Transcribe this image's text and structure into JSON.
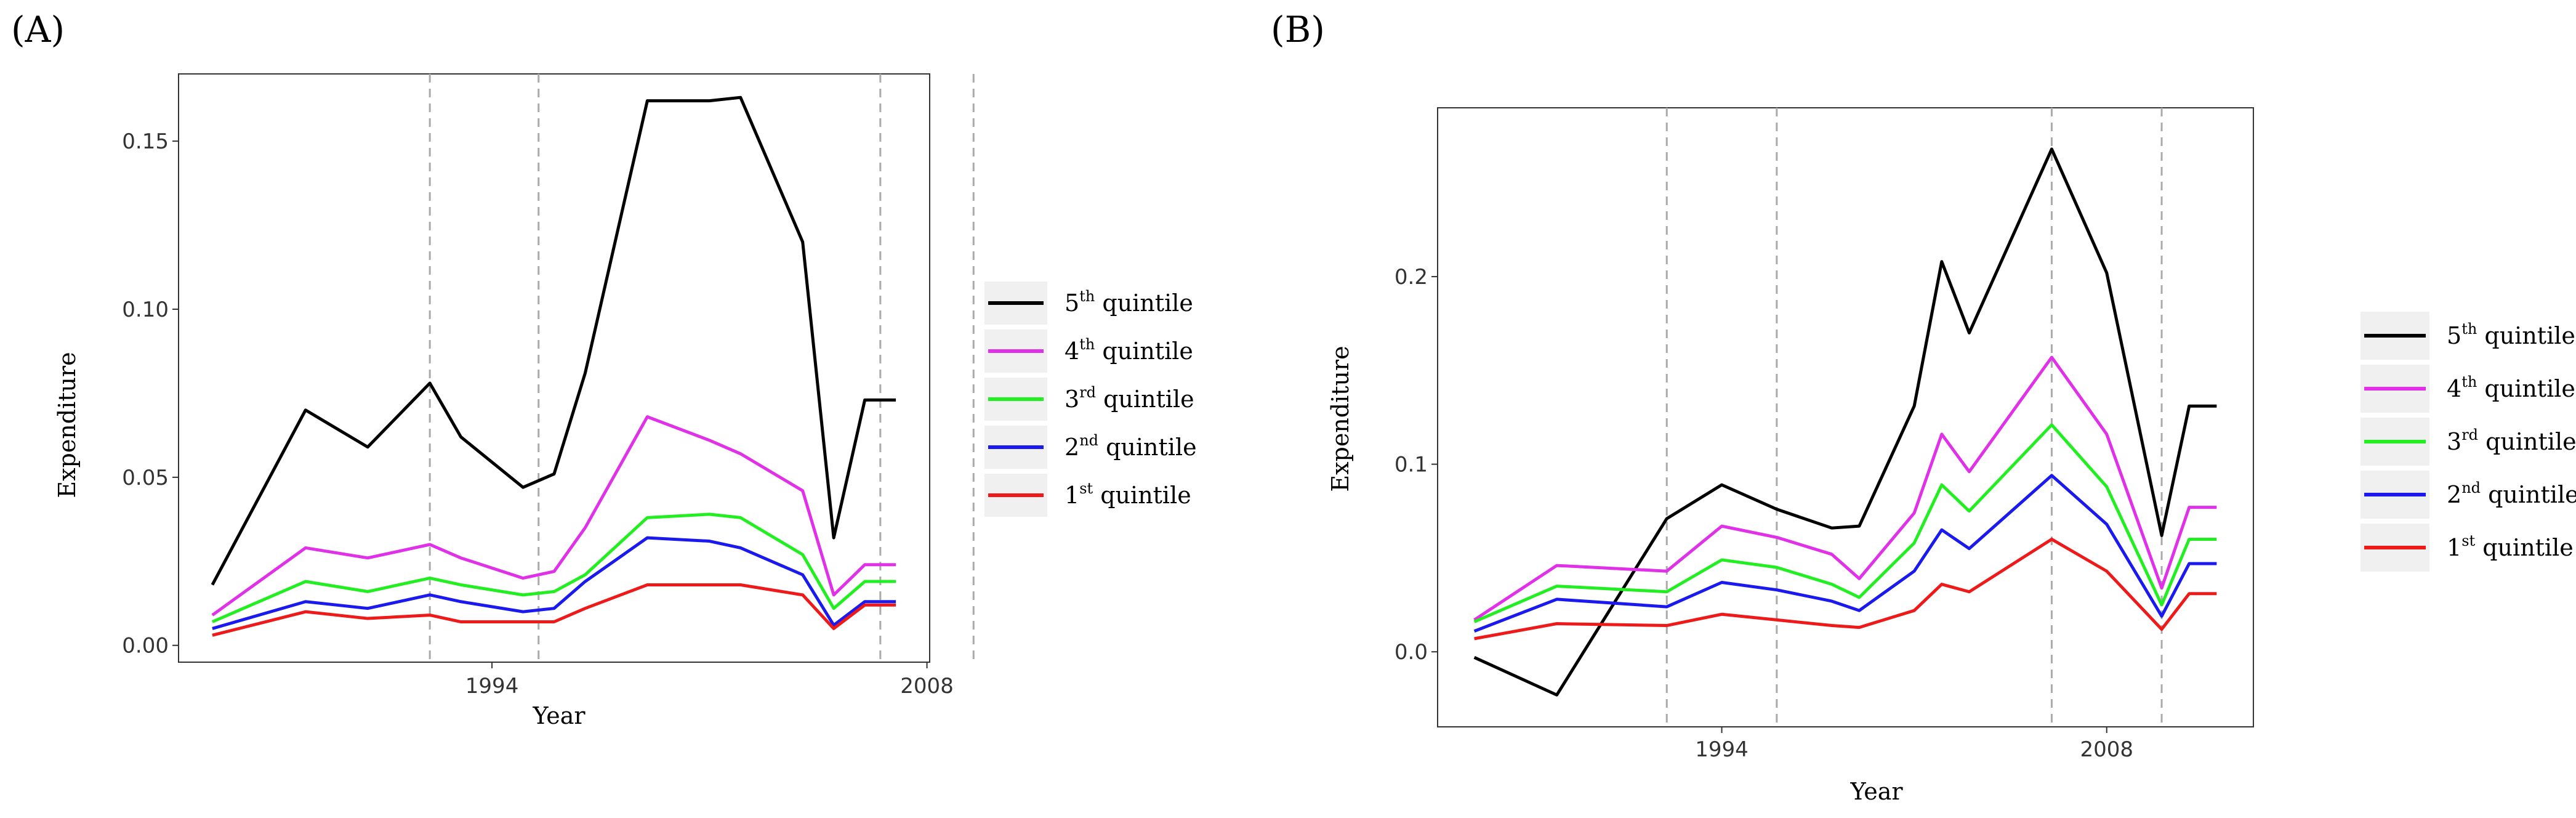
{
  "chart_data": [
    {
      "type": "line",
      "panel_label": "(A)",
      "xlabel": "Year",
      "ylabel": "Expenditure",
      "x_ticks": [
        "1994",
        "2008"
      ],
      "ylim": [
        -0.005,
        0.17
      ],
      "y_ticks": [
        "0.00",
        "0.05",
        "0.10",
        "0.15"
      ],
      "x": [
        1985,
        1988,
        1990,
        1992,
        1993,
        1995,
        1996,
        1997,
        1999,
        2001,
        2002,
        2004,
        2005,
        2006,
        2007
      ],
      "reference_lines": [
        1992,
        1995.5,
        2006.5,
        2009.5
      ],
      "series": [
        {
          "name": "5th quintile",
          "ordinal": "5",
          "suffix": "th",
          "label": "quintile",
          "color": "#000000",
          "values": [
            0.018,
            0.07,
            0.059,
            0.078,
            0.062,
            0.047,
            0.051,
            0.081,
            0.162,
            0.162,
            0.163,
            0.12,
            0.032,
            0.073,
            0.073
          ]
        },
        {
          "name": "4th quintile",
          "ordinal": "4",
          "suffix": "th",
          "label": "quintile",
          "color": "#e030e8",
          "values": [
            0.009,
            0.029,
            0.026,
            0.03,
            0.026,
            0.02,
            0.022,
            0.035,
            0.068,
            0.061,
            0.057,
            0.046,
            0.015,
            0.024,
            0.024
          ]
        },
        {
          "name": "3rd quintile",
          "ordinal": "3",
          "suffix": "rd",
          "label": "quintile",
          "color": "#22ee22",
          "values": [
            0.007,
            0.019,
            0.016,
            0.02,
            0.018,
            0.015,
            0.016,
            0.021,
            0.038,
            0.039,
            0.038,
            0.027,
            0.011,
            0.019,
            0.019
          ]
        },
        {
          "name": "2nd quintile",
          "ordinal": "2",
          "suffix": "nd",
          "label": "quintile",
          "color": "#1a1aee",
          "values": [
            0.005,
            0.013,
            0.011,
            0.015,
            0.013,
            0.01,
            0.011,
            0.019,
            0.032,
            0.031,
            0.029,
            0.021,
            0.006,
            0.013,
            0.013
          ]
        },
        {
          "name": "1st quintile",
          "ordinal": "1",
          "suffix": "st",
          "label": "quintile",
          "color": "#ee1a1a",
          "values": [
            0.003,
            0.01,
            0.008,
            0.009,
            0.007,
            0.007,
            0.007,
            0.011,
            0.018,
            0.018,
            0.018,
            0.015,
            0.005,
            0.012,
            0.012
          ]
        }
      ]
    },
    {
      "type": "line",
      "panel_label": "(B)",
      "xlabel": "Year",
      "ylabel": "Expenditure",
      "x_ticks": [
        "1994",
        "2008"
      ],
      "ylim": [
        -0.04,
        0.29
      ],
      "y_ticks": [
        "0.0",
        "0.1",
        "0.2"
      ],
      "x": [
        1985,
        1988,
        1992,
        1994,
        1996,
        1998,
        1999,
        2001,
        2002,
        2003,
        2006,
        2008,
        2010,
        2011,
        2012
      ],
      "reference_lines": [
        1992,
        1996,
        2006,
        2010
      ],
      "series": [
        {
          "name": "5th quintile",
          "ordinal": "5",
          "suffix": "th",
          "label": "quintile",
          "color": "#000000",
          "values": [
            -0.003,
            -0.023,
            0.071,
            0.089,
            0.076,
            0.066,
            0.067,
            0.131,
            0.208,
            0.17,
            0.268,
            0.202,
            0.062,
            0.131,
            0.131
          ]
        },
        {
          "name": "4th quintile",
          "ordinal": "4",
          "suffix": "th",
          "label": "quintile",
          "color": "#e030e8",
          "values": [
            0.017,
            0.046,
            0.043,
            0.067,
            0.061,
            0.052,
            0.039,
            0.074,
            0.116,
            0.096,
            0.157,
            0.116,
            0.034,
            0.077,
            0.077
          ]
        },
        {
          "name": "3rd quintile",
          "ordinal": "3",
          "suffix": "rd",
          "label": "quintile",
          "color": "#22ee22",
          "values": [
            0.016,
            0.035,
            0.032,
            0.049,
            0.045,
            0.036,
            0.029,
            0.058,
            0.089,
            0.075,
            0.121,
            0.088,
            0.025,
            0.06,
            0.06
          ]
        },
        {
          "name": "2nd quintile",
          "ordinal": "2",
          "suffix": "nd",
          "label": "quintile",
          "color": "#1a1aee",
          "values": [
            0.011,
            0.028,
            0.024,
            0.037,
            0.033,
            0.027,
            0.022,
            0.043,
            0.065,
            0.055,
            0.094,
            0.068,
            0.019,
            0.047,
            0.047
          ]
        },
        {
          "name": "1st quintile",
          "ordinal": "1",
          "suffix": "st",
          "label": "quintile",
          "color": "#ee1a1a",
          "values": [
            0.007,
            0.015,
            0.014,
            0.02,
            0.017,
            0.014,
            0.013,
            0.022,
            0.036,
            0.032,
            0.06,
            0.043,
            0.012,
            0.031,
            0.031
          ]
        }
      ]
    }
  ]
}
